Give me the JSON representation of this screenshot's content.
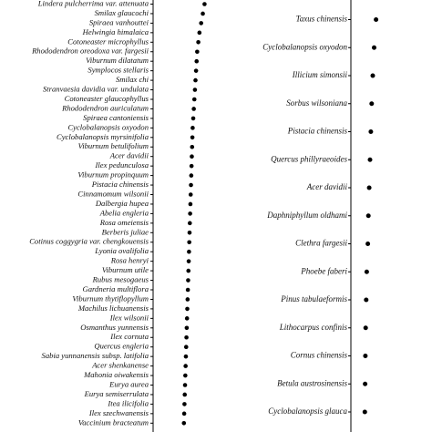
{
  "colors": {
    "point": "#000000",
    "axis": "#000000",
    "text": "#111111",
    "background": "#ffffff"
  },
  "chart_data": [
    {
      "type": "scatter",
      "orientation": "horizontal-dot",
      "title": "",
      "xlabel": "",
      "ylabel": "",
      "grid": false,
      "xlim": [
        0,
        1
      ],
      "categories": [
        "Lindera pulcherrima var. attenuata",
        "Smilax glaucochi",
        "Spiraea vanhouttei",
        "Helwingia himalaica",
        "Cotoneaster microphyllus",
        "Rhododendron oreodoxa var. fargesii",
        "Viburnum dilatatum",
        "Symplocos stellaris",
        "Smilax chi",
        "Stranvaesia davidia var. undulata",
        "Cotoneaster glaucophyllus",
        "Rhododendron auriculatum",
        "Spiraea cantoniensis",
        "Cyclobalanopsis oxyodon",
        "Cyclobalanopsis myrsinifolia",
        "Viburnum betulifolium",
        "Acer davidii",
        "Ilex pedunculosa",
        "Viburnum propinquum",
        "Pistacia chinensis",
        "Cinnamomum wilsonii",
        "Dalbergia hupea",
        "Abelia engleria",
        "Rosa omeiensis",
        "Berberis juliae",
        "Cotinus coggygria var. chengkouensis",
        "Lyonia ovalifolia",
        "Rosa henryi",
        "Viburnum utile",
        "Rubus mesogaeus",
        "Gardneria multiflora",
        "Viburnum thytiflopyllum",
        "Machilus lichuanensis",
        "Ilex wilsonii",
        "Osmanthus yunnensis",
        "Ilex cornuta",
        "Quercus engleria",
        "Sabia yunnanensis subsp. latifolia",
        "Acer shenkanense",
        "Mahonia oiwakensis",
        "Eurya aurea",
        "Eurya semiserrulata",
        "Itea ilicifolia",
        "Ilex szechwanensis",
        "Vaccinium bracteatum"
      ],
      "values": [
        0.91,
        0.88,
        0.85,
        0.82,
        0.8,
        0.78,
        0.77,
        0.76,
        0.75,
        0.74,
        0.73,
        0.72,
        0.71,
        0.7,
        0.695,
        0.69,
        0.685,
        0.68,
        0.675,
        0.67,
        0.665,
        0.66,
        0.655,
        0.65,
        0.645,
        0.64,
        0.635,
        0.63,
        0.625,
        0.62,
        0.615,
        0.61,
        0.605,
        0.6,
        0.595,
        0.59,
        0.585,
        0.58,
        0.575,
        0.57,
        0.565,
        0.56,
        0.555,
        0.55,
        0.545
      ]
    },
    {
      "type": "scatter",
      "orientation": "horizontal-dot",
      "title": "",
      "xlabel": "",
      "ylabel": "",
      "grid": false,
      "xlim": [
        0,
        1
      ],
      "categories": [
        "Taxus chinensis",
        "Cyclobalanopsis oxyodon",
        "Illicium simonsii",
        "Sorbus wilsoniana",
        "Pistacia chinensis",
        "Quercus phillyraeoides",
        "Acer davidii",
        "Daphniphyllum oldhami",
        "Clethra fargesii",
        "Phoebe faberi",
        "Pinus tabulaeformis",
        "Lithocarpus confinis",
        "Cornus chinensis",
        "Betula austrosinensis",
        "Cyclobalanopsis glauca"
      ],
      "values": [
        0.92,
        0.85,
        0.8,
        0.76,
        0.73,
        0.7,
        0.67,
        0.64,
        0.62,
        0.58,
        0.56,
        0.54,
        0.53,
        0.52,
        0.51
      ]
    }
  ]
}
